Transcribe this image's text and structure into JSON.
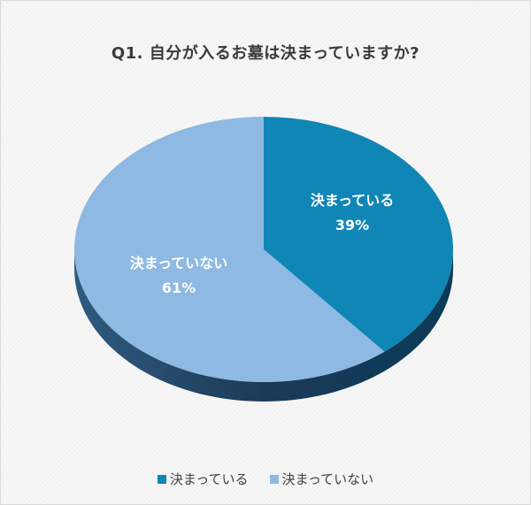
{
  "chart_data": {
    "type": "pie",
    "title": "Q1. 自分が入るお墓は決まっていますか?",
    "categories": [
      "決まっている",
      "決まっていない"
    ],
    "values": [
      39,
      61
    ],
    "percent_labels": [
      "39%",
      "61%"
    ],
    "colors": [
      "#0f86b6",
      "#8db9e2"
    ],
    "side_colors": [
      "#0a5f85",
      "#1e3f5c"
    ],
    "legend_position": "bottom",
    "style": "3d"
  }
}
